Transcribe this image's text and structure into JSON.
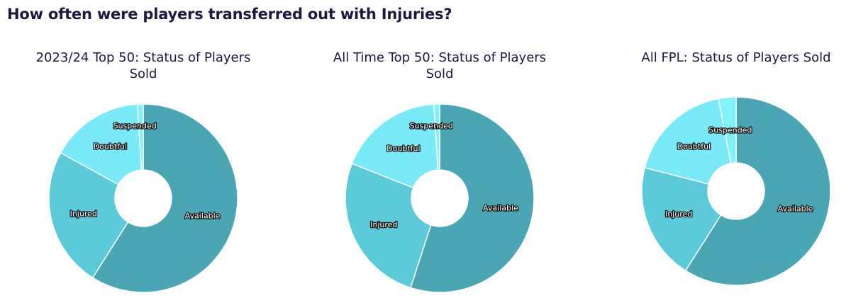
{
  "page_title": "How often were players transferred out with Injuries?",
  "colors": {
    "Available": "#4aa6b4",
    "Injured": "#5ccbd9",
    "Doubtful": "#78eaf8",
    "Suspended": "#82f2fa"
  },
  "chart_data": [
    {
      "type": "pie",
      "title": "2023/24 Top 50: Status of Players Sold",
      "labels": [
        "Available",
        "Injured",
        "Doubtful",
        "Suspended"
      ],
      "values": [
        59,
        24,
        16,
        1
      ]
    },
    {
      "type": "pie",
      "title": "All Time Top 50: Status of Players Sold",
      "labels": [
        "Available",
        "Injured",
        "Doubtful",
        "Suspended"
      ],
      "values": [
        55,
        26,
        18,
        1
      ]
    },
    {
      "type": "pie",
      "title": "All FPL: Status of Players Sold",
      "labels": [
        "Available",
        "Injured",
        "Doubtful",
        "Suspended"
      ],
      "values": [
        59,
        20,
        18,
        3
      ]
    }
  ]
}
